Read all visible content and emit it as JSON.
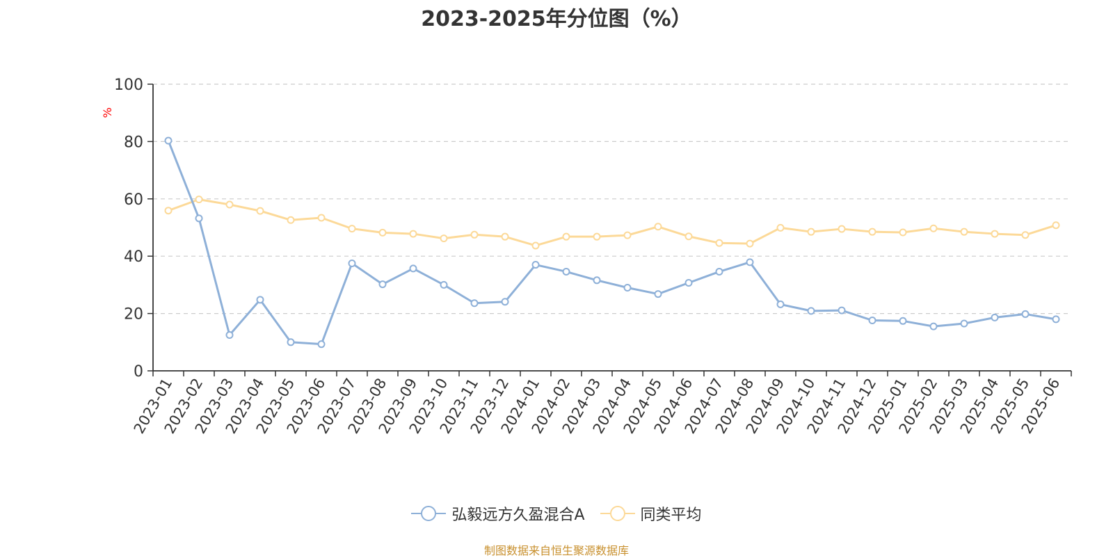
{
  "title": "2023-2025年分位图（%）",
  "source_note": "制图数据来自恒生聚源数据库",
  "colors": {
    "series_a": "#8eb0d8",
    "series_b": "#fcd998",
    "axis": "#333333",
    "grid": "#cccccc",
    "ylabel": "#ff0000",
    "source": "#c8902e"
  },
  "chart_data": {
    "type": "line",
    "title": "2023-2025年分位图（%）",
    "xlabel": "",
    "ylabel": "%",
    "ylim": [
      0,
      100
    ],
    "yticks": [
      0,
      20,
      40,
      60,
      80,
      100
    ],
    "grid": true,
    "legend_position": "bottom-center",
    "categories": [
      "2023-01",
      "2023-02",
      "2023-03",
      "2023-04",
      "2023-05",
      "2023-06",
      "2023-07",
      "2023-08",
      "2023-09",
      "2023-10",
      "2023-11",
      "2023-12",
      "2024-01",
      "2024-02",
      "2024-03",
      "2024-04",
      "2024-05",
      "2024-06",
      "2024-07",
      "2024-08",
      "2024-09",
      "2024-10",
      "2024-11",
      "2024-12",
      "2025-01",
      "2025-02",
      "2025-03",
      "2025-04",
      "2025-05",
      "2025-06"
    ],
    "series": [
      {
        "name": "弘毅远方久盈混合A",
        "color": "#8eb0d8",
        "values": [
          80.3,
          53.2,
          12.5,
          24.8,
          10.0,
          9.3,
          37.5,
          30.2,
          35.7,
          30.0,
          23.6,
          24.1,
          37.0,
          34.6,
          31.6,
          29.0,
          26.8,
          30.7,
          34.6,
          37.9,
          23.2,
          20.9,
          21.1,
          17.6,
          17.4,
          15.5,
          16.5,
          18.6,
          19.8,
          18.0
        ]
      },
      {
        "name": "同类平均",
        "color": "#fcd998",
        "values": [
          55.9,
          59.8,
          58.0,
          55.8,
          52.6,
          53.4,
          49.6,
          48.2,
          47.8,
          46.2,
          47.5,
          46.8,
          43.7,
          46.8,
          46.8,
          47.3,
          50.3,
          46.9,
          44.6,
          44.4,
          49.9,
          48.5,
          49.5,
          48.5,
          48.3,
          49.7,
          48.5,
          47.8,
          47.4,
          50.8
        ]
      }
    ]
  }
}
